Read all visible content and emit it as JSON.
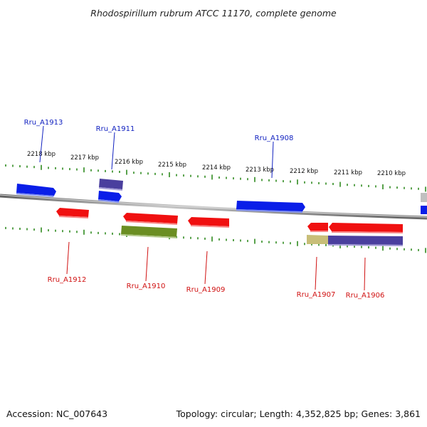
{
  "title": "Rhodospirillum rubrum ATCC 11170, complete genome",
  "footer": {
    "accession": "Accession: NC_007643",
    "summary": "Topology: circular; Length: 4,352,825 bp; Genes: 3,861"
  },
  "colors": {
    "backbone": "#8a8a8a",
    "tick": "#2f8a1f",
    "forward_gene": "#0a1ee8",
    "reverse_gene": "#f01010",
    "forward_label": "#1020c0",
    "reverse_label": "#d01010",
    "operon": "#4a3f9e",
    "green_feature": "#6b8e23",
    "khaki_feature": "#c8be78",
    "gray_feature": "#c0c0c0"
  },
  "ticks": [
    {
      "label": "2218 kbp"
    },
    {
      "label": "2217 kbp"
    },
    {
      "label": "2216 kbp"
    },
    {
      "label": "2215 kbp"
    },
    {
      "label": "2214 kbp"
    },
    {
      "label": "2213 kbp"
    },
    {
      "label": "2212 kbp"
    },
    {
      "label": "2211 kbp"
    },
    {
      "label": "2210 kbp"
    }
  ],
  "genes": [
    {
      "name": "Rru_A1913",
      "strand": "+"
    },
    {
      "name": "Rru_A1912",
      "strand": "-"
    },
    {
      "name": "Rru_A1911",
      "strand": "+"
    },
    {
      "name": "Rru_A1910",
      "strand": "-"
    },
    {
      "name": "Rru_A1909",
      "strand": "-"
    },
    {
      "name": "Rru_A1908",
      "strand": "+"
    },
    {
      "name": "Rru_A1907",
      "strand": "-"
    },
    {
      "name": "Rru_A1906",
      "strand": "-"
    }
  ]
}
